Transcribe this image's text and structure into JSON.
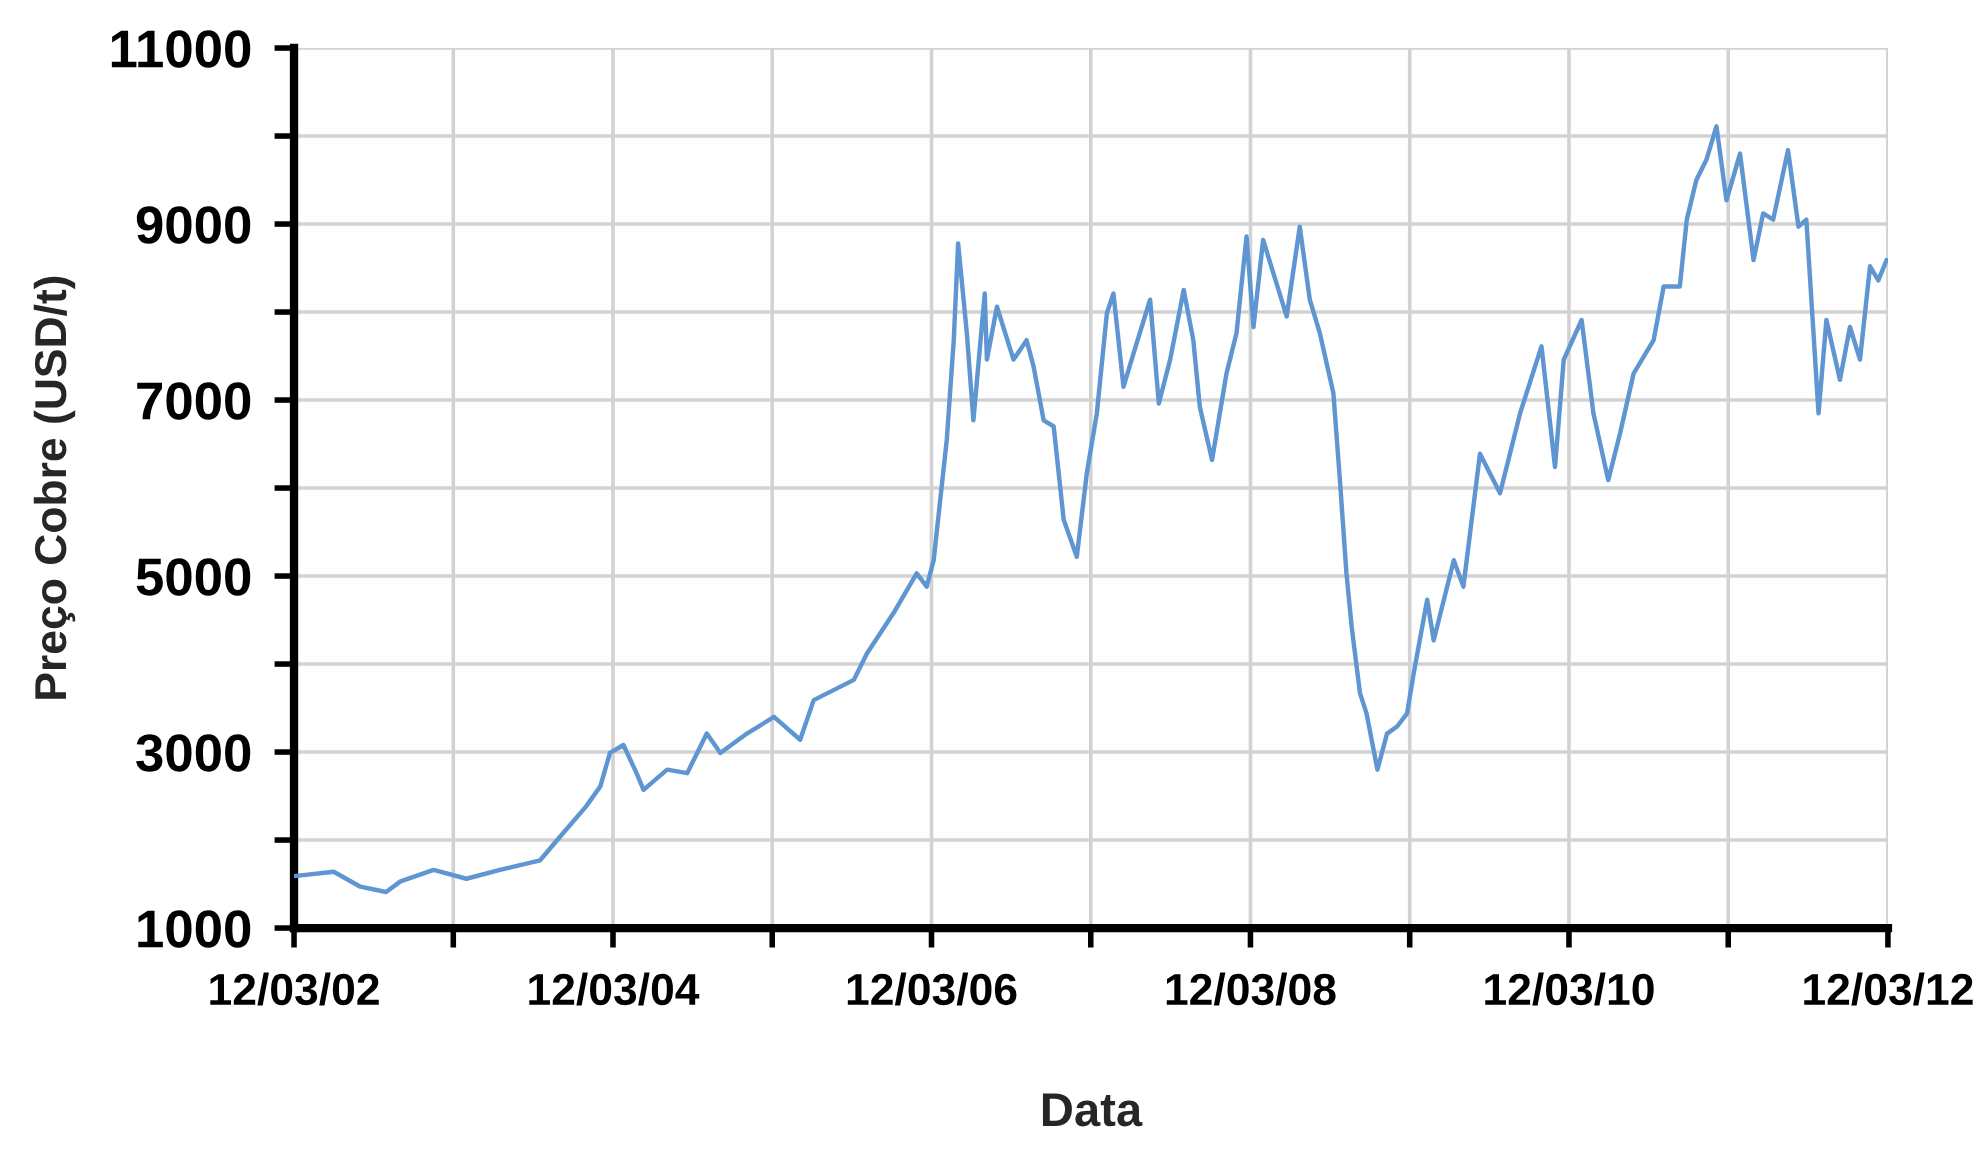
{
  "chart_data": {
    "type": "line",
    "xlabel": "Data",
    "ylabel": "Preço Cobre (USD/t)",
    "x": [
      "2002-03-12",
      "2002-06-11",
      "2002-08-11",
      "2002-10-09",
      "2002-11-11",
      "2003-01-26",
      "2003-04-11",
      "2003-06-27",
      "2003-09-27",
      "2003-11-12",
      "2004-01-10",
      "2004-02-12",
      "2004-03-05",
      "2004-04-05",
      "2004-05-05",
      "2004-05-21",
      "2004-07-14",
      "2004-08-29",
      "2004-10-13",
      "2004-11-13",
      "2005-01-13",
      "2005-03-16",
      "2005-05-15",
      "2005-06-15",
      "2005-09-15",
      "2005-10-15",
      "2005-12-15",
      "2006-02-06",
      "2006-03-01",
      "2006-03-17",
      "2006-04-16",
      "2006-05-02",
      "2006-05-12",
      "2006-06-01",
      "2006-06-16",
      "2006-07-12",
      "2006-07-17",
      "2006-08-09",
      "2006-09-16",
      "2006-10-16",
      "2006-11-01",
      "2006-11-24",
      "2006-12-17",
      "2007-01-09",
      "2007-02-08",
      "2007-03-03",
      "2007-03-26",
      "2007-04-18",
      "2007-05-03",
      "2007-05-26",
      "2007-06-18",
      "2007-07-26",
      "2007-08-15",
      "2007-09-10",
      "2007-10-11",
      "2007-11-02",
      "2007-11-17",
      "2007-12-15",
      "2008-01-17",
      "2008-02-09",
      "2008-03-03",
      "2008-03-19",
      "2008-04-10",
      "2008-06-03",
      "2008-07-03",
      "2008-07-26",
      "2008-08-18",
      "2008-09-18",
      "2008-10-03",
      "2008-10-18",
      "2008-10-30",
      "2008-11-18",
      "2008-12-03",
      "2008-12-28",
      "2009-01-19",
      "2009-02-11",
      "2009-03-06",
      "2009-03-21",
      "2009-04-21",
      "2009-05-06",
      "2009-06-21",
      "2009-07-13",
      "2009-08-20",
      "2009-10-05",
      "2009-11-20",
      "2010-01-08",
      "2010-02-08",
      "2010-02-28",
      "2010-04-10",
      "2010-05-07",
      "2010-06-10",
      "2010-07-07",
      "2010-08-07",
      "2010-09-22",
      "2010-10-15",
      "2010-11-21",
      "2010-12-07",
      "2010-12-29",
      "2011-01-21",
      "2011-02-13",
      "2011-03-08",
      "2011-04-08",
      "2011-05-09",
      "2011-05-31",
      "2011-06-23",
      "2011-07-27",
      "2011-08-20",
      "2011-09-07",
      "2011-10-05",
      "2011-10-23",
      "2011-11-23",
      "2011-12-16",
      "2012-01-08",
      "2012-01-31",
      "2012-02-19",
      "2012-03-09"
    ],
    "series": [
      {
        "color": "#5f96d2",
        "values": [
          1590,
          1640,
          1470,
          1410,
          1530,
          1660,
          1560,
          1660,
          1770,
          2040,
          2380,
          2610,
          2990,
          3080,
          2760,
          2570,
          2800,
          2760,
          3210,
          2990,
          3210,
          3400,
          3140,
          3590,
          3820,
          4120,
          4580,
          5030,
          4880,
          5180,
          6550,
          7680,
          8780,
          7760,
          6770,
          8210,
          7460,
          8060,
          7460,
          7680,
          7380,
          6770,
          6700,
          5640,
          5220,
          6170,
          6850,
          7990,
          8210,
          7150,
          7530,
          8140,
          6960,
          7460,
          8250,
          7680,
          6920,
          6320,
          7300,
          7760,
          8860,
          7830,
          8820,
          7950,
          8970,
          8140,
          7760,
          7080,
          6090,
          5030,
          4420,
          3670,
          3440,
          2800,
          3210,
          3290,
          3440,
          3890,
          4730,
          4270,
          5180,
          4880,
          6390,
          5940,
          6850,
          7610,
          6240,
          7460,
          7910,
          6850,
          6090,
          6620,
          7300,
          7680,
          8290,
          8290,
          9050,
          9500,
          9730,
          10110,
          9270,
          9800,
          8590,
          9120,
          9050,
          9840,
          8970,
          9050,
          6850,
          7910,
          7230,
          7830,
          7460,
          8520,
          8360,
          8590
        ]
      }
    ],
    "xlim": [
      "2002-03-12",
      "2012-03-12"
    ],
    "xticks": [
      {
        "value": "2002-03-12",
        "label": "12/03/02"
      },
      {
        "value": "2003-03-12",
        "label": null
      },
      {
        "value": "2004-03-12",
        "label": "12/03/04"
      },
      {
        "value": "2005-03-12",
        "label": null
      },
      {
        "value": "2006-03-12",
        "label": "12/03/06"
      },
      {
        "value": "2007-03-12",
        "label": null
      },
      {
        "value": "2008-03-12",
        "label": "12/03/08"
      },
      {
        "value": "2009-03-12",
        "label": null
      },
      {
        "value": "2010-03-12",
        "label": "12/03/10"
      },
      {
        "value": "2011-03-12",
        "label": null
      },
      {
        "value": "2012-03-12",
        "label": "12/03/12"
      }
    ],
    "ylim": [
      1000,
      11000
    ],
    "yticks": [
      1000,
      {
        "value": 2000,
        "label": null
      },
      3000,
      {
        "value": 4000,
        "label": null
      },
      5000,
      {
        "value": 6000,
        "label": null
      },
      7000,
      {
        "value": 8000,
        "label": null
      },
      9000,
      {
        "value": 10000,
        "label": null
      },
      11000
    ],
    "grid": true
  }
}
